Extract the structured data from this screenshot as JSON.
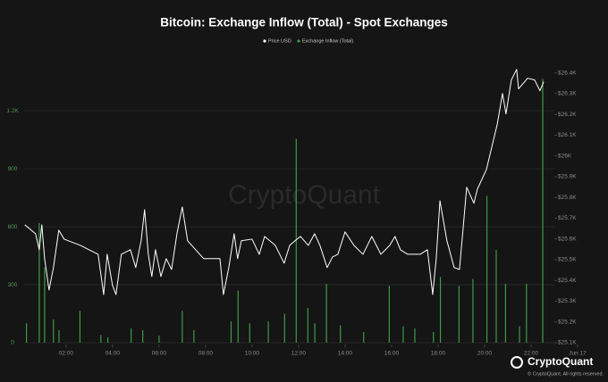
{
  "chart_data": {
    "type": "combo",
    "title": "Bitcoin: Exchange Inflow (Total) - Spot Exchanges",
    "watermark": "CryptoQuant",
    "brand": "CryptoQuant",
    "copyright": "© CryptoQuant. All rights reserved.",
    "xlim": [
      0.2,
      23
    ],
    "xticks": [
      {
        "value": 2,
        "label": "02:00"
      },
      {
        "value": 4,
        "label": "04:00"
      },
      {
        "value": 6,
        "label": "06:00"
      },
      {
        "value": 8,
        "label": "08:00"
      },
      {
        "value": 10,
        "label": "10:00"
      },
      {
        "value": 12,
        "label": "12:00"
      },
      {
        "value": 14,
        "label": "14:00"
      },
      {
        "value": 16,
        "label": "16:00"
      },
      {
        "value": 18,
        "label": "18:00"
      },
      {
        "value": 20,
        "label": "20:00"
      },
      {
        "value": 22,
        "label": "22:00"
      },
      {
        "value": 24,
        "label": "Jun 17"
      }
    ],
    "ylim": [
      0,
      1450
    ],
    "yticks": [
      0,
      300,
      600,
      900,
      {
        "value": 1200,
        "label": "1.2K"
      }
    ],
    "y2lim": [
      25100,
      26450
    ],
    "y2ticks": [
      {
        "value": 25100,
        "label": "$25.1K"
      },
      {
        "value": 25200,
        "label": "$25.2K"
      },
      {
        "value": 25300,
        "label": "$25.3K"
      },
      {
        "value": 25400,
        "label": "$25.4K"
      },
      {
        "value": 25500,
        "label": "$25.5K"
      },
      {
        "value": 25600,
        "label": "$25.6K"
      },
      {
        "value": 25700,
        "label": "$25.7K"
      },
      {
        "value": 25800,
        "label": "$25.8K"
      },
      {
        "value": 25900,
        "label": "$25.9K"
      },
      {
        "value": 26000,
        "label": "$26K"
      },
      {
        "value": 26100,
        "label": "$26.1K"
      },
      {
        "value": 26200,
        "label": "$26.2K"
      },
      {
        "value": 26300,
        "label": "$26.3K"
      },
      {
        "value": 26400,
        "label": "$26.4K"
      }
    ],
    "grid": true,
    "legend": "top",
    "series": [
      {
        "name": "Price USD",
        "type": "line",
        "axis": "y2",
        "color": "#ffffff",
        "x": [
          0.23,
          0.69,
          0.85,
          0.96,
          1.08,
          1.27,
          1.46,
          1.69,
          1.92,
          2.62,
          3.38,
          3.62,
          3.77,
          4.0,
          4.15,
          4.38,
          4.77,
          5.0,
          5.23,
          5.38,
          5.54,
          5.69,
          5.85,
          6.08,
          6.31,
          6.54,
          6.77,
          7.0,
          7.23,
          7.92,
          8.62,
          8.77,
          9.0,
          9.23,
          9.38,
          9.54,
          10.0,
          10.31,
          10.54,
          11.0,
          11.38,
          11.62,
          11.85,
          12.08,
          12.42,
          12.69,
          12.92,
          13.23,
          13.46,
          13.69,
          14.0,
          14.38,
          14.77,
          15.15,
          15.54,
          15.92,
          16.15,
          16.38,
          16.69,
          17.23,
          17.54,
          17.77,
          17.92,
          18.08,
          18.38,
          18.69,
          18.92,
          19.08,
          19.23,
          19.54,
          19.69,
          20.08,
          20.54,
          20.77,
          20.92,
          21.15,
          21.38,
          21.46,
          21.62,
          21.85,
          22.15,
          22.38,
          22.54
        ],
        "values": [
          25668,
          25625,
          25548,
          25668,
          25505,
          25354,
          25462,
          25642,
          25599,
          25569,
          25526,
          25332,
          25526,
          25376,
          25332,
          25526,
          25548,
          25462,
          25591,
          25741,
          25526,
          25419,
          25548,
          25419,
          25505,
          25453,
          25625,
          25754,
          25591,
          25505,
          25505,
          25332,
          25462,
          25625,
          25505,
          25591,
          25599,
          25526,
          25612,
          25569,
          25483,
          25569,
          25591,
          25612,
          25569,
          25625,
          25569,
          25462,
          25513,
          25526,
          25634,
          25569,
          25526,
          25612,
          25526,
          25569,
          25612,
          25548,
          25526,
          25526,
          25548,
          25332,
          25505,
          25784,
          25591,
          25462,
          25453,
          25655,
          25849,
          25772,
          25840,
          25935,
          26150,
          26301,
          26202,
          26366,
          26417,
          26323,
          26344,
          26374,
          26366,
          26314,
          26357
        ]
      },
      {
        "name": "Exchange Inflow (Total)",
        "type": "bar",
        "color": "#3f9a45",
        "x": [
          0.3,
          0.85,
          1.08,
          1.46,
          1.7,
          2.6,
          3.5,
          3.8,
          4.8,
          5.3,
          6.0,
          7.0,
          7.5,
          9.1,
          9.4,
          9.9,
          10.7,
          11.4,
          11.9,
          12.4,
          12.7,
          13.2,
          13.8,
          14.8,
          15.9,
          16.5,
          17.0,
          17.8,
          18.1,
          18.9,
          19.5,
          20.1,
          20.5,
          20.9,
          21.5,
          21.8,
          22.5
        ],
        "values": [
          100,
          620,
          390,
          120,
          65,
          165,
          40,
          28,
          75,
          65,
          37,
          165,
          65,
          110,
          270,
          100,
          110,
          150,
          1055,
          180,
          100,
          305,
          90,
          55,
          295,
          85,
          75,
          55,
          340,
          295,
          330,
          760,
          480,
          305,
          85,
          305,
          1365
        ]
      }
    ]
  }
}
